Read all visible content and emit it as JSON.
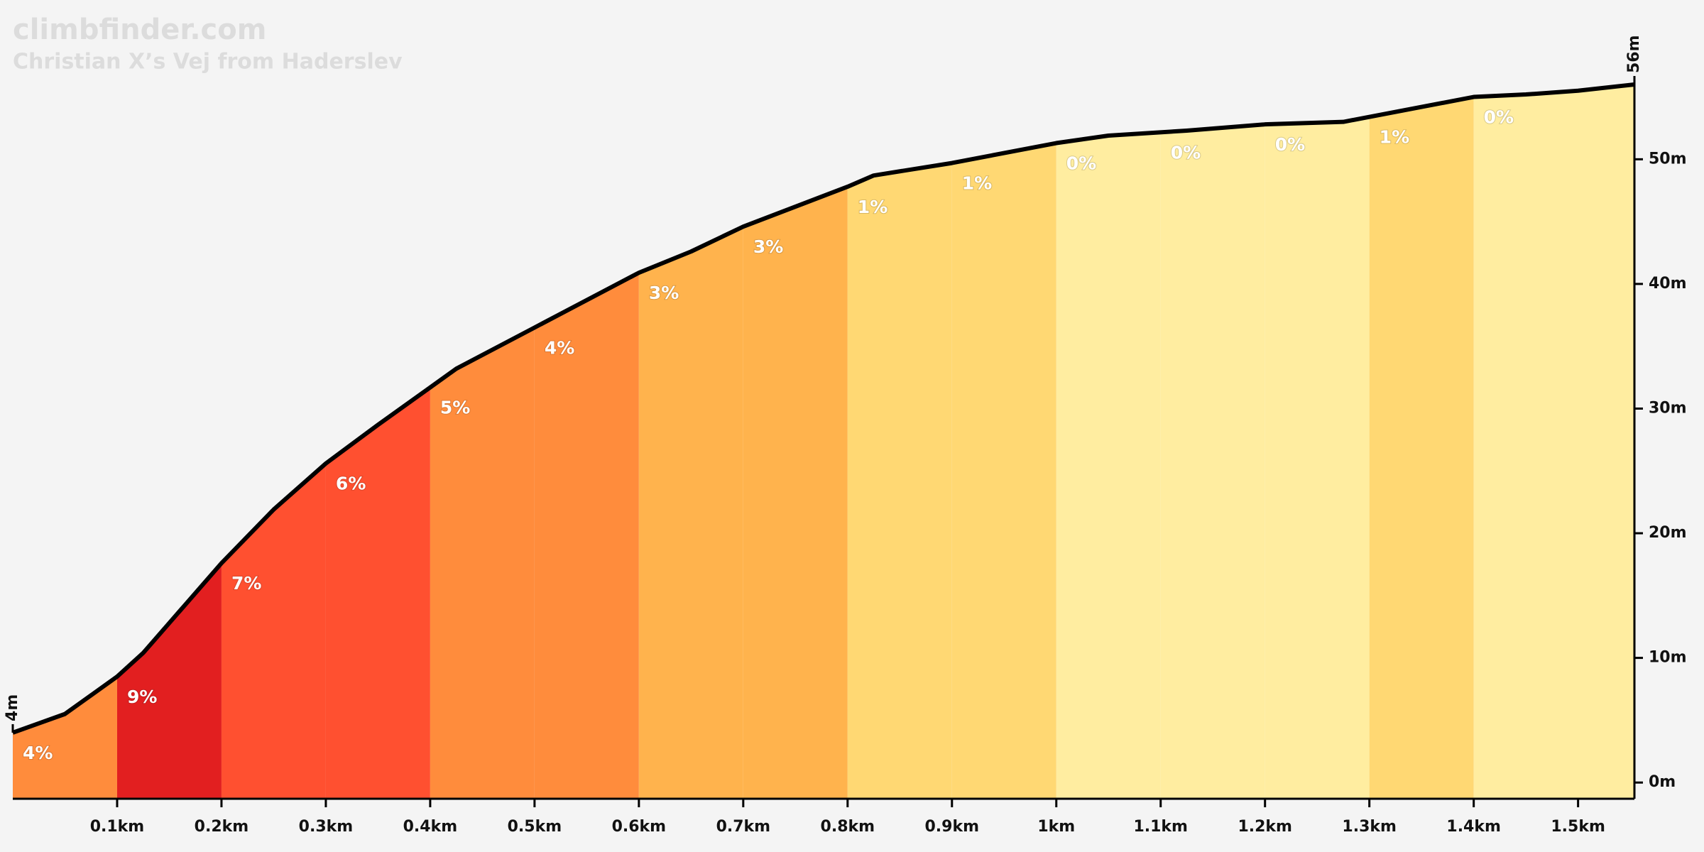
{
  "chart_data": {
    "type": "elevation-profile",
    "title": "climbfinder.com",
    "subtitle": "Christian X’s Vej from Haderslev",
    "x": [
      0,
      0.05,
      0.1,
      0.125,
      0.15,
      0.2,
      0.25,
      0.3,
      0.35,
      0.4,
      0.425,
      0.5,
      0.6,
      0.65,
      0.7,
      0.8,
      0.825,
      0.9,
      1.0,
      1.05,
      1.125,
      1.2,
      1.275,
      1.4,
      1.45,
      1.5,
      1.554
    ],
    "values": [
      4,
      5.5,
      8.5,
      10.4,
      12.8,
      17.6,
      21.9,
      25.6,
      28.7,
      31.7,
      33.2,
      36.5,
      40.9,
      42.6,
      44.6,
      47.8,
      48.7,
      49.7,
      51.3,
      51.9,
      52.3,
      52.8,
      53.0,
      55.0,
      55.2,
      55.5,
      56
    ],
    "value_labels": [
      "4m",
      null,
      null,
      null,
      null,
      null,
      null,
      null,
      null,
      null,
      null,
      null,
      null,
      null,
      null,
      null,
      null,
      null,
      null,
      null,
      null,
      null,
      null,
      null,
      null,
      null,
      "56m"
    ],
    "line_color": "#000000",
    "segments": [
      {
        "x0": 0,
        "x1": 0.1,
        "grade": 4,
        "label": "4%",
        "color": "#ff8c3c"
      },
      {
        "x0": 0.1,
        "x1": 0.2,
        "grade": 9,
        "label": "9%",
        "color": "#e21f20"
      },
      {
        "x0": 0.2,
        "x1": 0.3,
        "grade": 7,
        "label": "7%",
        "color": "#ff5030"
      },
      {
        "x0": 0.3,
        "x1": 0.4,
        "grade": 6,
        "label": "6%",
        "color": "#ff5030"
      },
      {
        "x0": 0.4,
        "x1": 0.5,
        "grade": 5,
        "label": "5%",
        "color": "#ff8c3c"
      },
      {
        "x0": 0.5,
        "x1": 0.6,
        "grade": 4,
        "label": "4%",
        "color": "#ff8c3c"
      },
      {
        "x0": 0.6,
        "x1": 0.7,
        "grade": 3,
        "label": "3%",
        "color": "#ffb34d"
      },
      {
        "x0": 0.7,
        "x1": 0.8,
        "grade": 3,
        "label": "3%",
        "color": "#ffb34d"
      },
      {
        "x0": 0.8,
        "x1": 0.9,
        "grade": 1,
        "label": "1%",
        "color": "#ffd873"
      },
      {
        "x0": 0.9,
        "x1": 1.0,
        "grade": 1,
        "label": "1%",
        "color": "#ffd873"
      },
      {
        "x0": 1.0,
        "x1": 1.1,
        "grade": 0,
        "label": "0%",
        "color": "#ffeda0"
      },
      {
        "x0": 1.1,
        "x1": 1.2,
        "grade": 0,
        "label": "0%",
        "color": "#ffeda0"
      },
      {
        "x0": 1.2,
        "x1": 1.3,
        "grade": 0,
        "label": "0%",
        "color": "#ffeda0"
      },
      {
        "x0": 1.3,
        "x1": 1.4,
        "grade": 1,
        "label": "1%",
        "color": "#ffd873"
      },
      {
        "x0": 1.4,
        "x1": 1.554,
        "grade": 0,
        "label": "0%",
        "color": "#ffeda0"
      }
    ],
    "xlim": [
      0,
      1.554
    ],
    "xticks": [
      {
        "value": 0.1,
        "label": "0.1km"
      },
      {
        "value": 0.2,
        "label": "0.2km"
      },
      {
        "value": 0.3,
        "label": "0.3km"
      },
      {
        "value": 0.4,
        "label": "0.4km"
      },
      {
        "value": 0.5,
        "label": "0.5km"
      },
      {
        "value": 0.6,
        "label": "0.6km"
      },
      {
        "value": 0.7,
        "label": "0.7km"
      },
      {
        "value": 0.8,
        "label": "0.8km"
      },
      {
        "value": 0.9,
        "label": "0.9km"
      },
      {
        "value": 1.0,
        "label": "1km"
      },
      {
        "value": 1.1,
        "label": "1.1km"
      },
      {
        "value": 1.2,
        "label": "1.2km"
      },
      {
        "value": 1.3,
        "label": "1.3km"
      },
      {
        "value": 1.4,
        "label": "1.4km"
      },
      {
        "value": 1.5,
        "label": "1.5km"
      }
    ],
    "ylim": [
      -1.3,
      56
    ],
    "yticks": [
      {
        "value": 0,
        "label": "0m"
      },
      {
        "value": 10,
        "label": "10m"
      },
      {
        "value": 20,
        "label": "20m"
      },
      {
        "value": 30,
        "label": "30m"
      },
      {
        "value": 40,
        "label": "40m"
      },
      {
        "value": 50,
        "label": "50m"
      }
    ]
  }
}
